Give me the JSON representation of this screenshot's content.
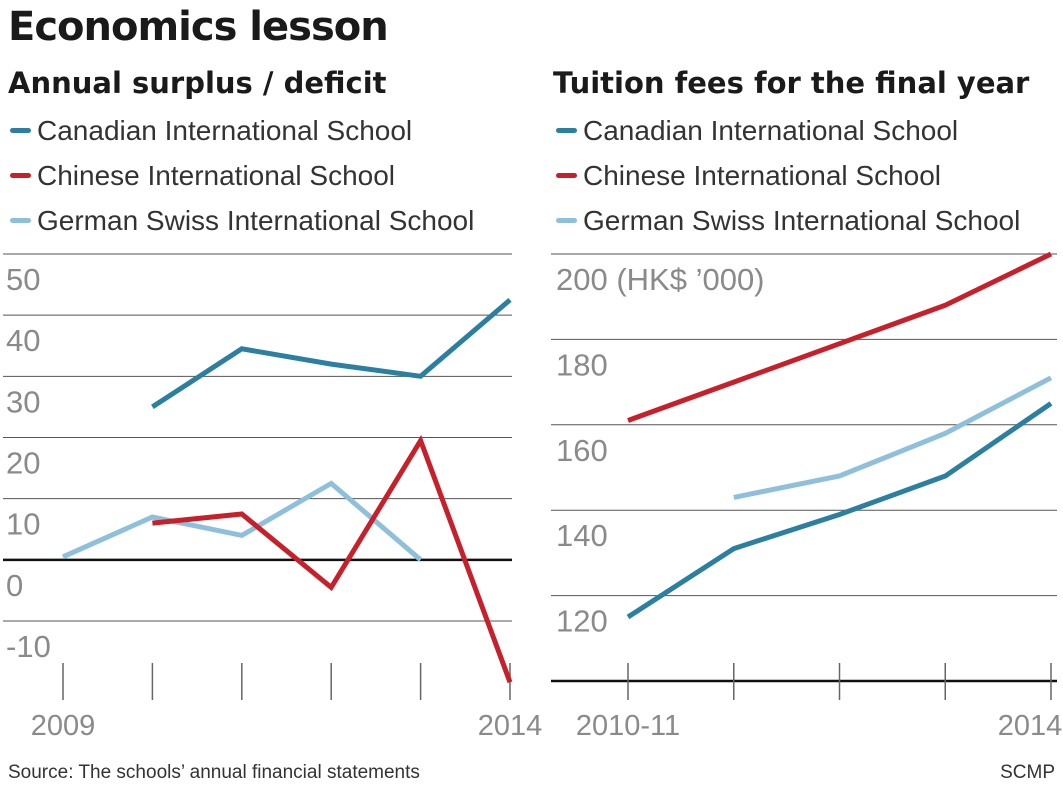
{
  "title": "Economics lesson",
  "footer": {
    "source": "Source: The schools’ annual financial statements",
    "credit": "SCMP"
  },
  "chart_data": [
    {
      "type": "line",
      "title": "Annual surplus / deficit",
      "xlabel": "",
      "ylabel": "",
      "x": [
        2009,
        2010,
        2011,
        2012,
        2013,
        2014
      ],
      "x_tick_labels": [
        "2009",
        "",
        "",
        "",
        "",
        "2014"
      ],
      "y_ticks": [
        50,
        40,
        30,
        20,
        10,
        0,
        -10
      ],
      "ylim": [
        -10,
        50
      ],
      "grid": true,
      "legend": "top",
      "series": [
        {
          "name": "Canadian International School",
          "color": "#2b7fa0",
          "values": [
            null,
            25,
            34.5,
            32,
            30,
            42.5
          ]
        },
        {
          "name": "Chinese International School",
          "color": "#c8202a",
          "values": [
            null,
            6,
            7.5,
            -4.5,
            19.5,
            -20
          ]
        },
        {
          "name": "German Swiss International School",
          "color": "#8ec0dc",
          "values": [
            0.5,
            7,
            4,
            12.5,
            0,
            null
          ]
        }
      ]
    },
    {
      "type": "line",
      "title": "Tuition fees for the final year",
      "unit_label": "(HK$ ’000)",
      "xlabel": "",
      "ylabel": "",
      "x": [
        "2010-11",
        "2011-12",
        "2012-13",
        "2013-14",
        "2014-15"
      ],
      "x_tick_labels": [
        "2010-11",
        "",
        "",
        "",
        "2014-15"
      ],
      "y_ticks": [
        200,
        180,
        160,
        140,
        120
      ],
      "ylim": [
        100,
        200
      ],
      "grid": true,
      "legend": "top",
      "series": [
        {
          "name": "Canadian International School",
          "color": "#2b7fa0",
          "values": [
            115,
            131,
            139,
            148,
            165
          ]
        },
        {
          "name": "Chinese International School",
          "color": "#c8202a",
          "values": [
            161,
            170,
            179,
            188,
            200
          ]
        },
        {
          "name": "German Swiss International School",
          "color": "#8ec0dc",
          "values": [
            null,
            143,
            148,
            158,
            171
          ]
        }
      ]
    }
  ]
}
